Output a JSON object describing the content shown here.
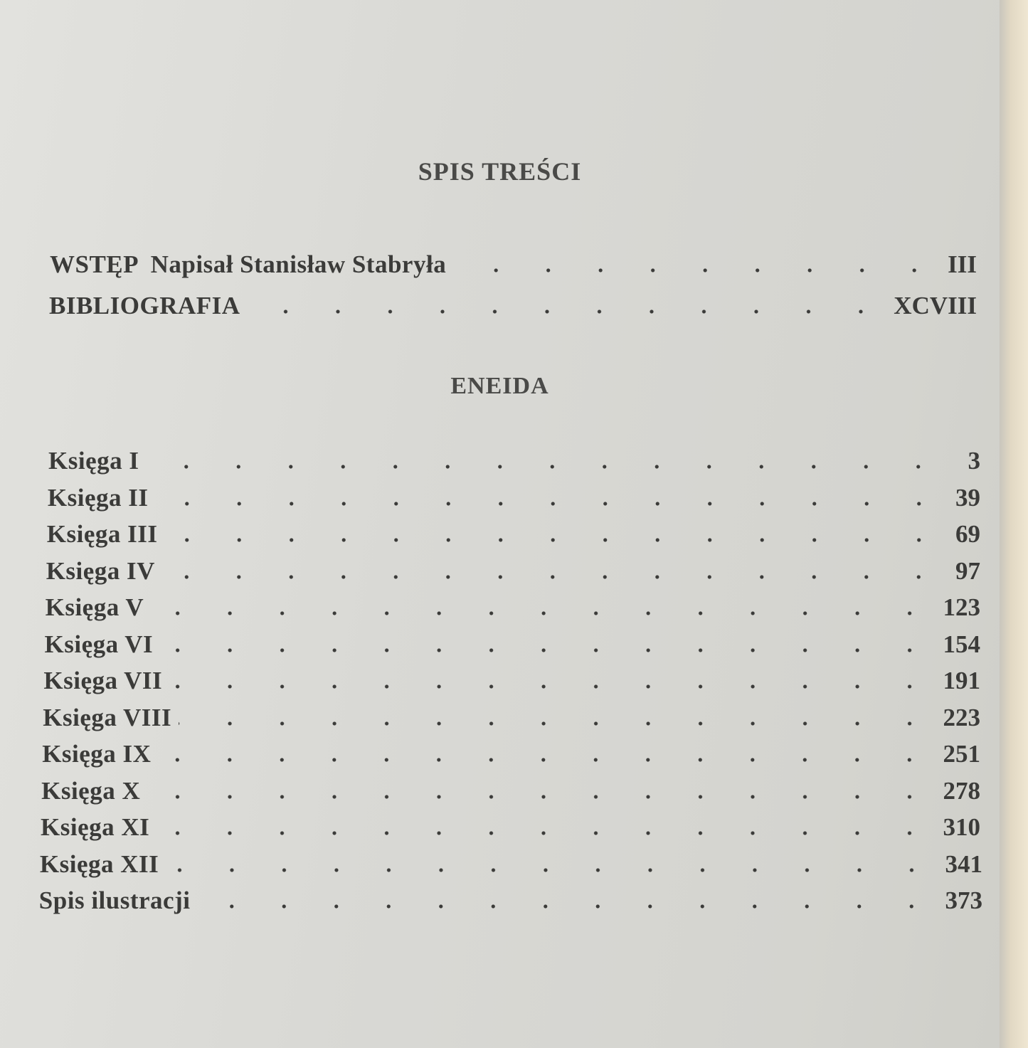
{
  "heading": "SPIS TREŚCI",
  "front_matter": [
    {
      "label": "WSTĘP  Napisał Stanisław Stabryła",
      "page": "III"
    },
    {
      "label": "BIBLIOGRAFIA",
      "page": "XCVIII"
    }
  ],
  "section_title": "ENEIDA",
  "entries": [
    {
      "label": "Księga I",
      "page": "3"
    },
    {
      "label": "Księga II",
      "page": "39"
    },
    {
      "label": "Księga III",
      "page": "69"
    },
    {
      "label": "Księga IV",
      "page": "97"
    },
    {
      "label": "Księga V",
      "page": "123"
    },
    {
      "label": "Księga VI",
      "page": "154"
    },
    {
      "label": "Księga VII",
      "page": "191"
    },
    {
      "label": "Księga VIII",
      "page": "223"
    },
    {
      "label": "Księga IX",
      "page": "251"
    },
    {
      "label": "Księga X",
      "page": "278"
    },
    {
      "label": "Księga XI",
      "page": "310"
    },
    {
      "label": "Księga XII",
      "page": "341"
    },
    {
      "label": "Spis ilustracji",
      "page": "373"
    }
  ]
}
